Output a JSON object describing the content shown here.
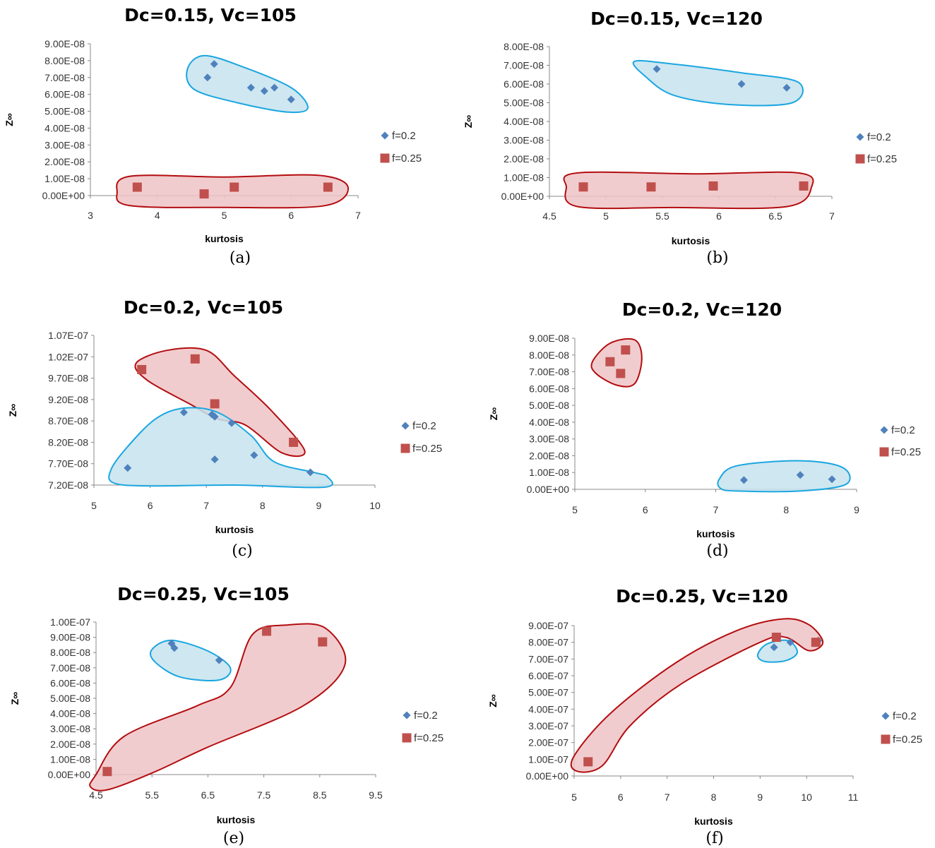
{
  "figure": {
    "series_colors": {
      "f=0.2": "#4f81bd",
      "f=0.25": "#c0504d"
    },
    "cluster_colors": {
      "blue_stroke": "#1aa6e0",
      "blue_fill": "#c6e3ee",
      "red_stroke": "#b30d10",
      "red_fill": "#eec3c5"
    }
  },
  "chart_data": [
    {
      "panel_label": "(a)",
      "type": "scatter",
      "title": "Dc=0.15, Vc=105",
      "xlabel": "kurtosis",
      "ylabel": "Z∞",
      "xlim": [
        3,
        7
      ],
      "ylim": [
        0,
        9e-08
      ],
      "x_ticks": [
        "3",
        "4",
        "5",
        "6",
        "7"
      ],
      "y_ticks": [
        "0.00E+00",
        "1.00E-08",
        "2.00E-08",
        "3.00E-08",
        "4.00E-08",
        "5.00E-08",
        "6.00E-08",
        "7.00E-08",
        "8.00E-08",
        "9.00E-08"
      ],
      "grid": false,
      "legend_position": "right",
      "series": [
        {
          "name": "f=0.2",
          "marker": "diamond",
          "points": [
            [
              4.75,
              7e-08
            ],
            [
              4.85,
              7.8e-08
            ],
            [
              5.4,
              6.4e-08
            ],
            [
              5.6,
              6.2e-08
            ],
            [
              5.75,
              6.4e-08
            ],
            [
              6.0,
              5.7e-08
            ]
          ]
        },
        {
          "name": "f=0.25",
          "marker": "square",
          "points": [
            [
              3.7,
              5e-09
            ],
            [
              4.7,
              1e-09
            ],
            [
              5.15,
              5e-09
            ],
            [
              6.55,
              5e-09
            ]
          ]
        }
      ]
    },
    {
      "panel_label": "(b)",
      "type": "scatter",
      "title": "Dc=0.15, Vc=120",
      "xlabel": "kurtosis",
      "ylabel": "Z∞",
      "xlim": [
        4.5,
        7
      ],
      "ylim": [
        0,
        8e-08
      ],
      "x_ticks": [
        "4.5",
        "5",
        "5.5",
        "6",
        "6.5",
        "7"
      ],
      "y_ticks": [
        "0.00E+00",
        "1.00E-08",
        "2.00E-08",
        "3.00E-08",
        "4.00E-08",
        "5.00E-08",
        "6.00E-08",
        "7.00E-08",
        "8.00E-08"
      ],
      "grid": false,
      "legend_position": "right",
      "series": [
        {
          "name": "f=0.2",
          "marker": "diamond",
          "points": [
            [
              5.45,
              6.8e-08
            ],
            [
              6.2,
              6e-08
            ],
            [
              6.6,
              5.8e-08
            ]
          ]
        },
        {
          "name": "f=0.25",
          "marker": "square",
          "points": [
            [
              4.8,
              5e-09
            ],
            [
              5.4,
              5e-09
            ],
            [
              5.95,
              5.5e-09
            ],
            [
              6.75,
              5.5e-09
            ]
          ]
        }
      ]
    },
    {
      "panel_label": "(c)",
      "type": "scatter",
      "title": "Dc=0.2, Vc=105",
      "xlabel": "kurtosis",
      "ylabel": "Z∞",
      "xlim": [
        5,
        10
      ],
      "ylim": [
        7.2e-08,
        1.07e-07
      ],
      "x_ticks": [
        "5",
        "6",
        "7",
        "8",
        "9",
        "10"
      ],
      "y_ticks": [
        "7.20E-08",
        "7.70E-08",
        "8.20E-08",
        "8.70E-08",
        "9.20E-08",
        "9.70E-08",
        "1.02E-07",
        "1.07E-07"
      ],
      "grid": false,
      "legend_position": "right",
      "series": [
        {
          "name": "f=0.2",
          "marker": "diamond",
          "points": [
            [
              5.6,
              7.6e-08
            ],
            [
              6.6,
              8.9e-08
            ],
            [
              7.1,
              8.85e-08
            ],
            [
              7.15,
              8.8e-08
            ],
            [
              7.15,
              7.8e-08
            ],
            [
              7.45,
              8.65e-08
            ],
            [
              7.85,
              7.9e-08
            ],
            [
              8.85,
              7.5e-08
            ]
          ]
        },
        {
          "name": "f=0.25",
          "marker": "square",
          "points": [
            [
              5.85,
              9.9e-08
            ],
            [
              6.8,
              1.015e-07
            ],
            [
              7.15,
              9.1e-08
            ],
            [
              8.55,
              8.2e-08
            ]
          ]
        }
      ]
    },
    {
      "panel_label": "(d)",
      "type": "scatter",
      "title": "Dc=0.2, Vc=120",
      "xlabel": "kurtosis",
      "ylabel": "Z∞",
      "xlim": [
        5,
        9
      ],
      "ylim": [
        0,
        9e-08
      ],
      "x_ticks": [
        "5",
        "6",
        "7",
        "8",
        "9"
      ],
      "y_ticks": [
        "0.00E+00",
        "1.00E-08",
        "2.00E-08",
        "3.00E-08",
        "4.00E-08",
        "5.00E-08",
        "6.00E-08",
        "7.00E-08",
        "8.00E-08",
        "9.00E-08"
      ],
      "grid": false,
      "legend_position": "right",
      "series": [
        {
          "name": "f=0.2",
          "marker": "diamond",
          "points": [
            [
              7.4,
              5.5e-09
            ],
            [
              8.2,
              8.5e-09
            ],
            [
              8.65,
              6e-09
            ]
          ]
        },
        {
          "name": "f=0.25",
          "marker": "square",
          "points": [
            [
              5.5,
              7.6e-08
            ],
            [
              5.65,
              6.9e-08
            ],
            [
              5.72,
              8.3e-08
            ]
          ]
        }
      ]
    },
    {
      "panel_label": "(e)",
      "type": "scatter",
      "title": "Dc=0.25, Vc=105",
      "xlabel": "kurtosis",
      "ylabel": "Z∞",
      "xlim": [
        4.5,
        9.5
      ],
      "ylim": [
        0,
        1e-07
      ],
      "x_ticks": [
        "4.5",
        "5.5",
        "6.5",
        "7.5",
        "8.5",
        "9.5"
      ],
      "y_ticks": [
        "0.00E+00",
        "1.00E-08",
        "2.00E-08",
        "3.00E-08",
        "4.00E-08",
        "5.00E-08",
        "6.00E-08",
        "7.00E-08",
        "8.00E-08",
        "9.00E-08",
        "1.00E-07"
      ],
      "grid": false,
      "legend_position": "right",
      "series": [
        {
          "name": "f=0.2",
          "marker": "diamond",
          "points": [
            [
              5.85,
              8.6e-08
            ],
            [
              5.9,
              8.3e-08
            ],
            [
              6.7,
              7.5e-08
            ]
          ]
        },
        {
          "name": "f=0.25",
          "marker": "square",
          "points": [
            [
              4.7,
              2e-09
            ],
            [
              7.55,
              9.4e-08
            ],
            [
              8.55,
              8.7e-08
            ]
          ]
        }
      ]
    },
    {
      "panel_label": "(f)",
      "type": "scatter",
      "title": "Dc=0.25, Vc=120",
      "xlabel": "kurtosis",
      "ylabel": "Z∞",
      "xlim": [
        5,
        11
      ],
      "ylim": [
        0,
        9e-07
      ],
      "x_ticks": [
        "5",
        "6",
        "7",
        "8",
        "9",
        "10",
        "11"
      ],
      "y_ticks": [
        "0.00E+00",
        "1.00E-07",
        "2.00E-07",
        "3.00E-07",
        "4.00E-07",
        "5.00E-07",
        "6.00E-07",
        "7.00E-07",
        "8.00E-07",
        "9.00E-07"
      ],
      "grid": false,
      "legend_position": "right",
      "series": [
        {
          "name": "f=0.2",
          "marker": "diamond",
          "points": [
            [
              9.3,
              7.7e-07
            ],
            [
              9.65,
              8e-07
            ],
            [
              10.25,
              8.1e-07
            ]
          ]
        },
        {
          "name": "f=0.25",
          "marker": "square",
          "points": [
            [
              5.3,
              8.5e-08
            ],
            [
              9.35,
              8.3e-07
            ],
            [
              10.2,
              8e-07
            ]
          ]
        }
      ]
    }
  ]
}
